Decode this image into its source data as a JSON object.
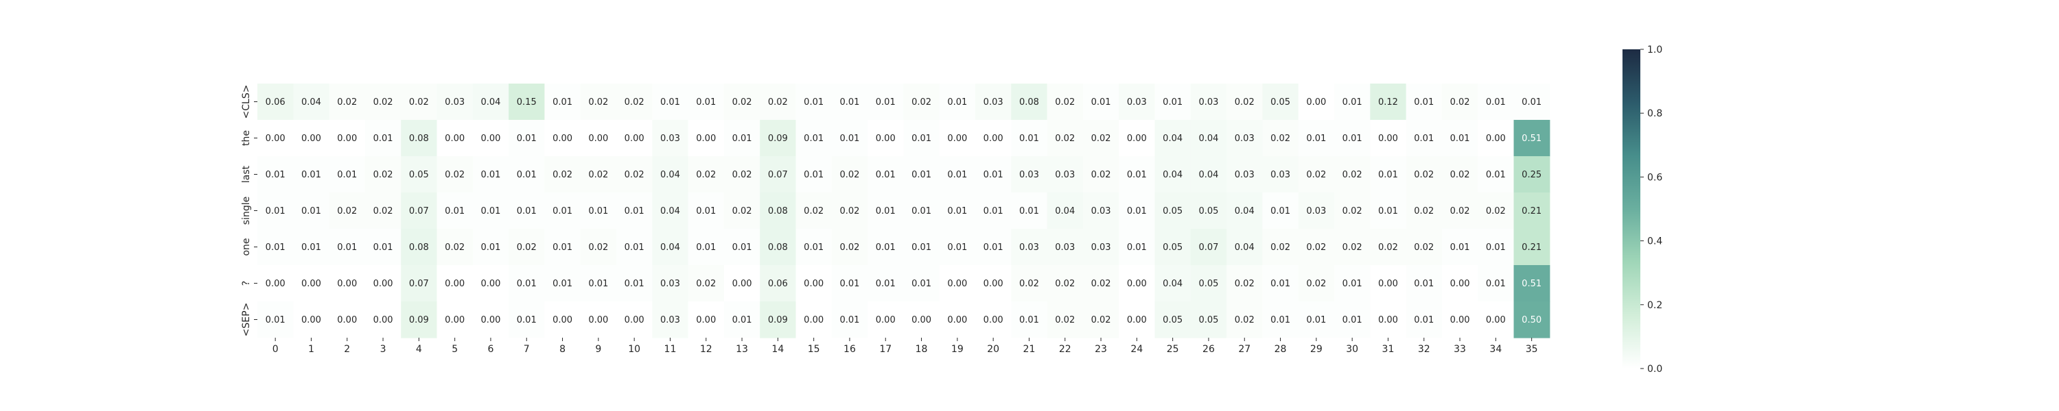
{
  "chart_data": {
    "type": "heatmap",
    "title": "",
    "xlabel": "",
    "ylabel": "",
    "x": [
      "0",
      "1",
      "2",
      "3",
      "4",
      "5",
      "6",
      "7",
      "8",
      "9",
      "10",
      "11",
      "12",
      "13",
      "14",
      "15",
      "16",
      "17",
      "18",
      "19",
      "20",
      "21",
      "22",
      "23",
      "24",
      "25",
      "26",
      "27",
      "28",
      "29",
      "30",
      "31",
      "32",
      "33",
      "34",
      "35"
    ],
    "y": [
      "<CLS>",
      "the",
      "last",
      "single",
      "one",
      "?",
      "<SEP>"
    ],
    "values": [
      [
        0.06,
        0.04,
        0.02,
        0.02,
        0.02,
        0.03,
        0.04,
        0.15,
        0.01,
        0.02,
        0.02,
        0.01,
        0.01,
        0.02,
        0.02,
        0.01,
        0.01,
        0.01,
        0.02,
        0.01,
        0.03,
        0.08,
        0.02,
        0.01,
        0.03,
        0.01,
        0.03,
        0.02,
        0.05,
        0.0,
        0.01,
        0.12,
        0.01,
        0.02,
        0.01,
        0.01
      ],
      [
        0.0,
        0.0,
        0.0,
        0.01,
        0.08,
        0.0,
        0.0,
        0.01,
        0.0,
        0.0,
        0.0,
        0.03,
        0.0,
        0.01,
        0.09,
        0.01,
        0.01,
        0.0,
        0.01,
        0.0,
        0.0,
        0.01,
        0.02,
        0.02,
        0.0,
        0.04,
        0.04,
        0.03,
        0.02,
        0.01,
        0.01,
        0.0,
        0.01,
        0.01,
        0.0,
        0.51
      ],
      [
        0.01,
        0.01,
        0.01,
        0.02,
        0.05,
        0.02,
        0.01,
        0.01,
        0.02,
        0.02,
        0.02,
        0.04,
        0.02,
        0.02,
        0.07,
        0.01,
        0.02,
        0.01,
        0.01,
        0.01,
        0.01,
        0.03,
        0.03,
        0.02,
        0.01,
        0.04,
        0.04,
        0.03,
        0.03,
        0.02,
        0.02,
        0.01,
        0.02,
        0.02,
        0.01,
        0.25
      ],
      [
        0.01,
        0.01,
        0.02,
        0.02,
        0.07,
        0.01,
        0.01,
        0.01,
        0.01,
        0.01,
        0.01,
        0.04,
        0.01,
        0.02,
        0.08,
        0.02,
        0.02,
        0.01,
        0.01,
        0.01,
        0.01,
        0.01,
        0.04,
        0.03,
        0.01,
        0.05,
        0.05,
        0.04,
        0.01,
        0.03,
        0.02,
        0.01,
        0.02,
        0.02,
        0.02,
        0.21
      ],
      [
        0.01,
        0.01,
        0.01,
        0.01,
        0.08,
        0.02,
        0.01,
        0.02,
        0.01,
        0.02,
        0.01,
        0.04,
        0.01,
        0.01,
        0.08,
        0.01,
        0.02,
        0.01,
        0.01,
        0.01,
        0.01,
        0.03,
        0.03,
        0.03,
        0.01,
        0.05,
        0.07,
        0.04,
        0.02,
        0.02,
        0.02,
        0.02,
        0.02,
        0.01,
        0.01,
        0.21
      ],
      [
        0.0,
        0.0,
        0.0,
        0.0,
        0.07,
        0.0,
        0.0,
        0.01,
        0.01,
        0.01,
        0.01,
        0.03,
        0.02,
        0.0,
        0.06,
        0.0,
        0.01,
        0.01,
        0.01,
        0.0,
        0.0,
        0.02,
        0.02,
        0.02,
        0.0,
        0.04,
        0.05,
        0.02,
        0.01,
        0.02,
        0.01,
        0.0,
        0.01,
        0.0,
        0.01,
        0.51
      ],
      [
        0.01,
        0.0,
        0.0,
        0.0,
        0.09,
        0.0,
        0.0,
        0.01,
        0.0,
        0.0,
        0.0,
        0.03,
        0.0,
        0.01,
        0.09,
        0.0,
        0.01,
        0.0,
        0.0,
        0.0,
        0.0,
        0.01,
        0.02,
        0.02,
        0.0,
        0.05,
        0.05,
        0.02,
        0.01,
        0.01,
        0.01,
        0.0,
        0.01,
        0.0,
        0.0,
        0.5
      ]
    ],
    "vmin": 0,
    "vmax": 1,
    "annotation_format": "0.00",
    "colorbar": {
      "ticks": [
        "0.0",
        "0.2",
        "0.4",
        "0.6",
        "0.8",
        "1.0"
      ],
      "tick_values": [
        0,
        0.2,
        0.4,
        0.6,
        0.8,
        1.0
      ],
      "position": "right"
    },
    "colormap": [
      "#ffffff",
      "#d2eed9",
      "#a0d6b8",
      "#6aaf9f",
      "#478e8b",
      "#2c5b6b",
      "#1d2b43"
    ],
    "grid": false
  }
}
